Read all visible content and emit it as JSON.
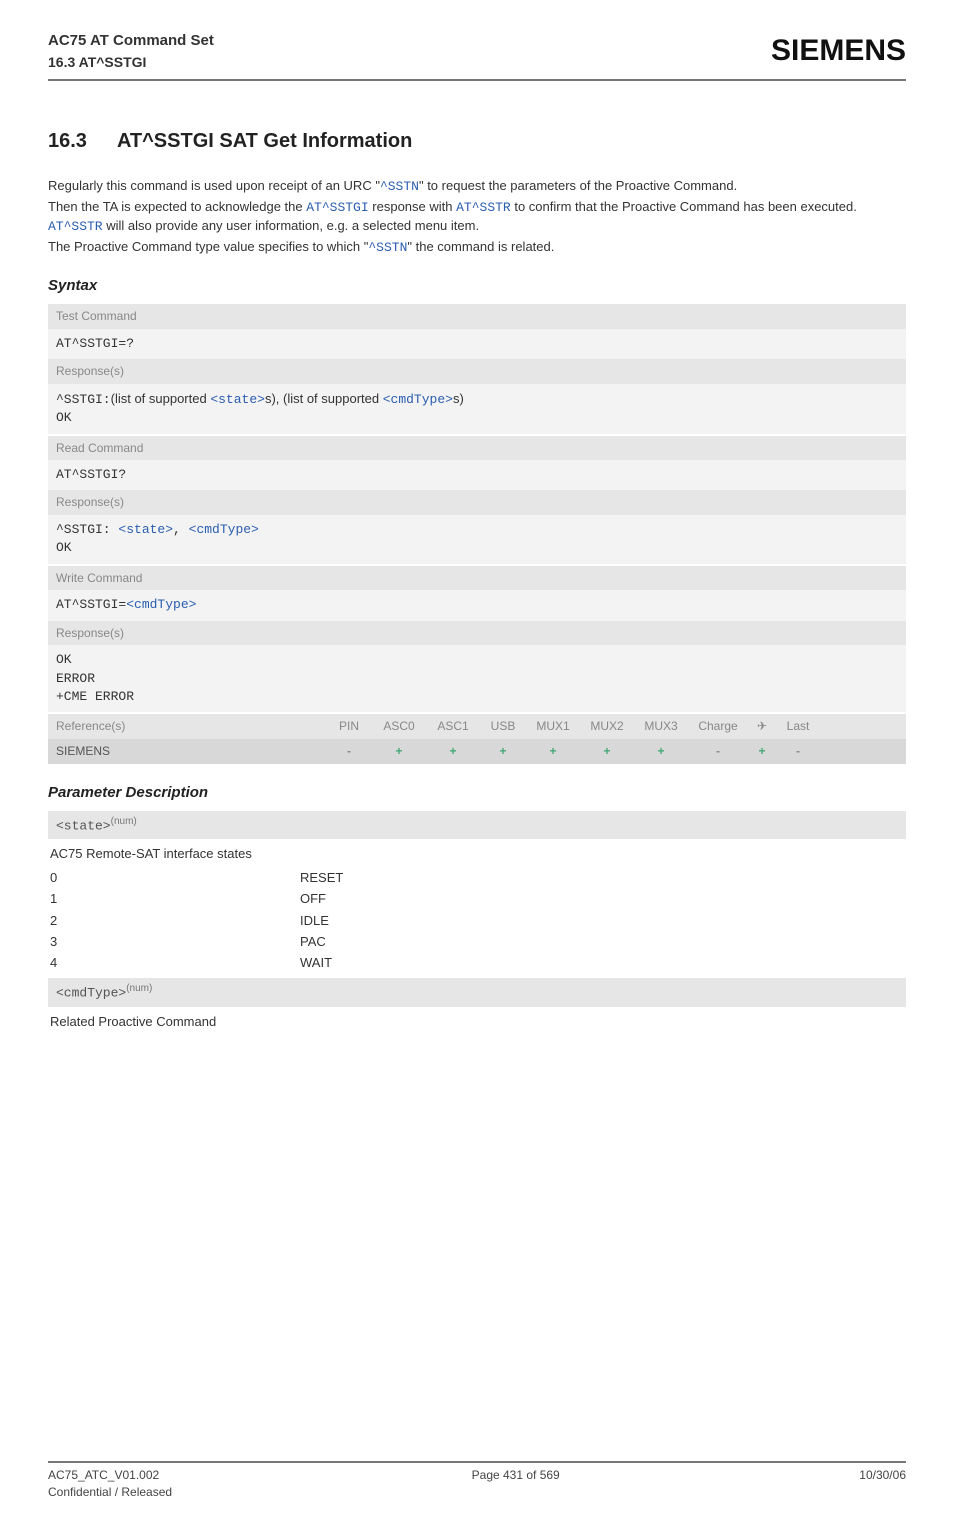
{
  "header": {
    "title_line1": "AC75 AT Command Set",
    "title_line2": "16.3 AT^SSTGI",
    "logo": "SIEMENS"
  },
  "section": {
    "number": "16.3",
    "title": "AT^SSTGI   SAT Get Information"
  },
  "intro": {
    "p1_a": "Regularly this command is used upon receipt of an URC \"",
    "p1_link1": "^SSTN",
    "p1_b": "\" to request the parameters of the Proactive Command.",
    "p2_a": "Then the TA is expected to acknowledge the ",
    "p2_link1": "AT^SSTGI",
    "p2_b": " response with ",
    "p2_link2": "AT^SSTR",
    "p2_c": " to confirm that the Proactive Command has been executed. ",
    "p2_link3": "AT^SSTR",
    "p2_d": " will also provide any user information, e.g. a selected menu item.",
    "p3_a": "The Proactive Command type value specifies to which \"",
    "p3_link1": "^SSTN",
    "p3_b": "\" the command is related."
  },
  "syntax_heading": "Syntax",
  "blocks": {
    "test": {
      "label": "Test Command",
      "cmd": "AT^SSTGI=?",
      "resp_label": "Response(s)",
      "resp_a": "^SSTGI:",
      "resp_b": "(list of supported ",
      "resp_state": "<state>",
      "resp_c": "s), (list of supported ",
      "resp_cmdtype": "<cmdType>",
      "resp_d": "s)",
      "ok": "OK"
    },
    "read": {
      "label": "Read Command",
      "cmd": "AT^SSTGI?",
      "resp_label": "Response(s)",
      "resp_a": "^SSTGI: ",
      "resp_state": "<state>",
      "comma": ", ",
      "resp_cmdtype": "<cmdType>",
      "ok": "OK"
    },
    "write": {
      "label": "Write Command",
      "cmd_a": "AT^SSTGI=",
      "cmd_cmdtype": "<cmdType>",
      "resp_label": "Response(s)",
      "ok": "OK",
      "err": "ERROR",
      "cme": "+CME ERROR"
    }
  },
  "ref": {
    "label": "Reference(s)",
    "cols": [
      "PIN",
      "ASC0",
      "ASC1",
      "USB",
      "MUX1",
      "MUX2",
      "MUX3",
      "Charge",
      "✈",
      "Last"
    ],
    "vendor": "SIEMENS",
    "vals": [
      "-",
      "+",
      "+",
      "+",
      "+",
      "+",
      "+",
      "-",
      "+",
      "-"
    ]
  },
  "param_heading": "Parameter Description",
  "param_state": {
    "name": "<state>",
    "sup": "(num)",
    "note": "AC75 Remote-SAT interface states",
    "rows": [
      {
        "k": "0",
        "v": "RESET"
      },
      {
        "k": "1",
        "v": "OFF"
      },
      {
        "k": "2",
        "v": "IDLE"
      },
      {
        "k": "3",
        "v": "PAC"
      },
      {
        "k": "4",
        "v": "WAIT"
      }
    ]
  },
  "param_cmdtype": {
    "name": "<cmdType>",
    "sup": "(num)",
    "note": "Related Proactive Command"
  },
  "footer": {
    "left1": "AC75_ATC_V01.002",
    "left2": "Confidential / Released",
    "mid": "Page 431 of 569",
    "right": "10/30/06"
  },
  "colors": {
    "label_bg": "#e6e6e6",
    "body_bg": "#f3f3f3",
    "sie_bg": "#d8d8d8",
    "link": "#2a5db0"
  }
}
